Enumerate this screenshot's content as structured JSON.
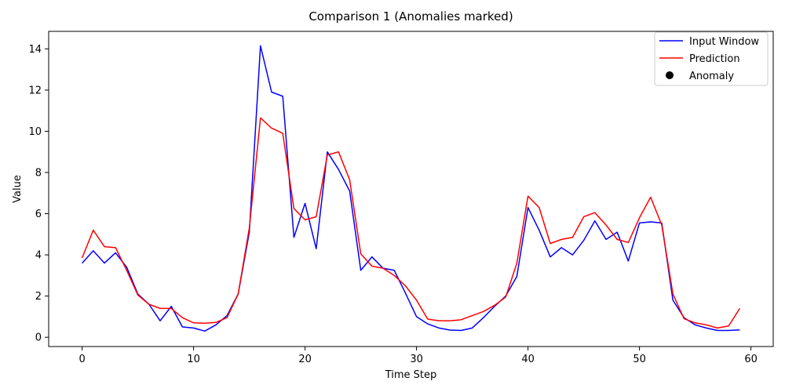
{
  "chart_data": {
    "type": "line",
    "title": "Comparison 1 (Anomalies marked)",
    "xlabel": "Time Step",
    "ylabel": "Value",
    "xlim": [
      -3,
      62
    ],
    "ylim": [
      -0.45,
      14.85
    ],
    "xticks": [
      0,
      10,
      20,
      30,
      40,
      50,
      60
    ],
    "yticks": [
      0,
      2,
      4,
      6,
      8,
      10,
      12,
      14
    ],
    "legend": {
      "position": "top-right",
      "entries": [
        {
          "label": "Input Window",
          "kind": "line",
          "color": "#0000ff"
        },
        {
          "label": "Prediction",
          "kind": "line",
          "color": "#ff0000"
        },
        {
          "label": "Anomaly",
          "kind": "marker",
          "color": "#000000"
        }
      ]
    },
    "grid": false,
    "series": [
      {
        "name": "Input Window",
        "color": "#0000ff",
        "x": [
          0,
          1,
          2,
          3,
          4,
          5,
          6,
          7,
          8,
          9,
          10,
          11,
          12,
          13,
          14,
          15,
          16,
          17,
          18,
          19,
          20,
          21,
          22,
          23,
          24,
          25,
          26,
          27,
          28,
          29,
          30,
          31,
          32,
          33,
          34,
          35,
          36,
          37,
          38,
          39,
          40,
          41,
          42,
          43,
          44,
          45,
          46,
          47,
          48,
          49,
          50,
          51,
          52,
          53,
          54,
          55,
          56,
          57,
          58,
          59
        ],
        "values": [
          3.6,
          4.2,
          3.6,
          4.1,
          3.4,
          2.1,
          1.6,
          0.8,
          1.5,
          0.5,
          0.45,
          0.3,
          0.6,
          1.05,
          2.1,
          5.1,
          14.15,
          11.9,
          11.7,
          4.85,
          6.5,
          4.3,
          9.0,
          8.15,
          7.1,
          3.25,
          3.9,
          3.35,
          3.25,
          2.15,
          1.0,
          0.65,
          0.45,
          0.35,
          0.33,
          0.45,
          0.95,
          1.5,
          2.0,
          2.95,
          6.3,
          5.2,
          3.9,
          4.35,
          4.0,
          4.7,
          5.65,
          4.75,
          5.1,
          3.7,
          5.55,
          5.6,
          5.55,
          1.8,
          0.95,
          0.6,
          0.45,
          0.33,
          0.33,
          0.36
        ]
      },
      {
        "name": "Prediction",
        "color": "#ff0000",
        "x": [
          0,
          1,
          2,
          3,
          4,
          5,
          6,
          7,
          8,
          9,
          10,
          11,
          12,
          13,
          14,
          15,
          16,
          17,
          18,
          19,
          20,
          21,
          22,
          23,
          24,
          25,
          26,
          27,
          28,
          29,
          30,
          31,
          32,
          33,
          34,
          35,
          36,
          37,
          38,
          39,
          40,
          41,
          42,
          43,
          44,
          45,
          46,
          47,
          48,
          49,
          50,
          51,
          52,
          53,
          54,
          55,
          56,
          57,
          58,
          59
        ],
        "values": [
          3.85,
          5.2,
          4.4,
          4.35,
          3.25,
          2.05,
          1.6,
          1.4,
          1.4,
          0.95,
          0.7,
          0.68,
          0.72,
          0.95,
          2.1,
          5.3,
          10.65,
          10.15,
          9.9,
          6.25,
          5.7,
          5.85,
          8.85,
          9.0,
          7.65,
          4.05,
          3.45,
          3.35,
          3.0,
          2.5,
          1.8,
          0.88,
          0.8,
          0.8,
          0.85,
          1.05,
          1.25,
          1.55,
          1.95,
          3.6,
          6.85,
          6.3,
          4.55,
          4.75,
          4.85,
          5.85,
          6.05,
          5.45,
          4.75,
          4.6,
          5.8,
          6.8,
          5.45,
          2.1,
          0.9,
          0.7,
          0.6,
          0.45,
          0.55,
          1.4
        ]
      }
    ]
  }
}
